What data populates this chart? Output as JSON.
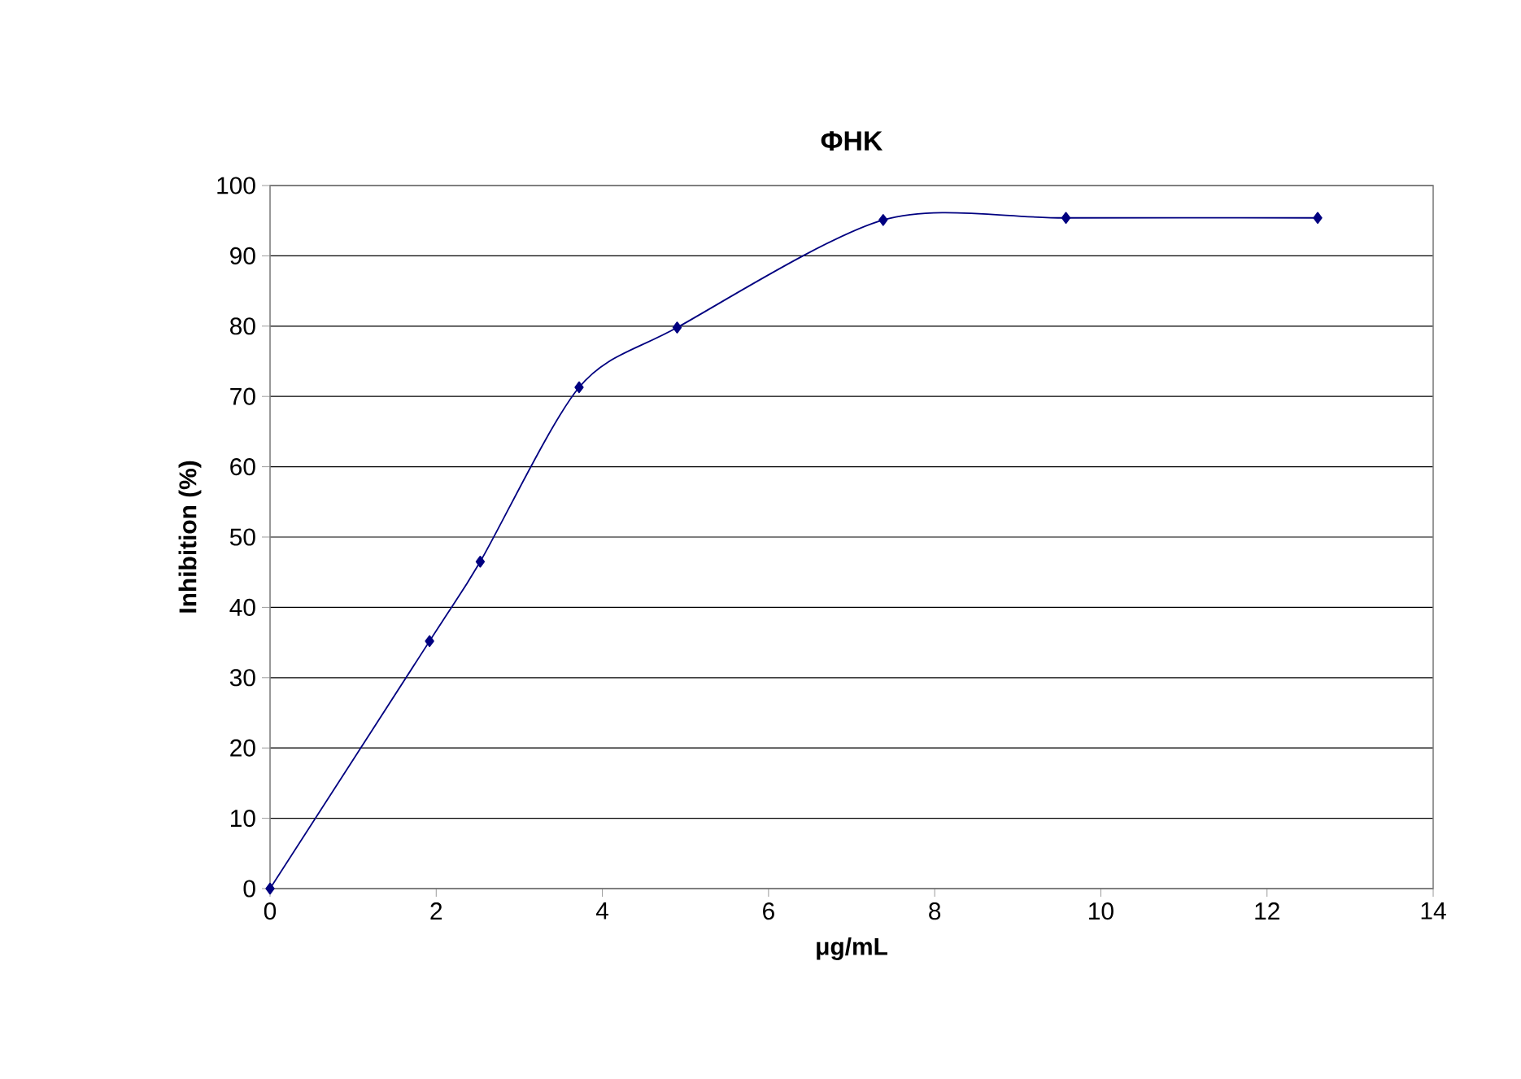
{
  "chart_data": {
    "type": "line",
    "title": "ΦHK",
    "xlabel": "μg/mL",
    "ylabel": "Inhibition (%)",
    "x": [
      0,
      1.92,
      2.53,
      3.72,
      4.9,
      7.38,
      9.58,
      12.61
    ],
    "series": [
      {
        "color": "#000080",
        "values": [
          0,
          35.2,
          46.5,
          71.3,
          79.8,
          95.1,
          95.4,
          95.4
        ]
      }
    ],
    "xlim": [
      0,
      14
    ],
    "ylim": [
      0,
      100
    ],
    "xticks": [
      0,
      2,
      4,
      6,
      8,
      10,
      12,
      14
    ],
    "yticks": [
      0,
      10,
      20,
      30,
      40,
      50,
      60,
      70,
      80,
      90,
      100
    ],
    "grid": "y",
    "marker": "diamond",
    "line_style": "solid"
  }
}
